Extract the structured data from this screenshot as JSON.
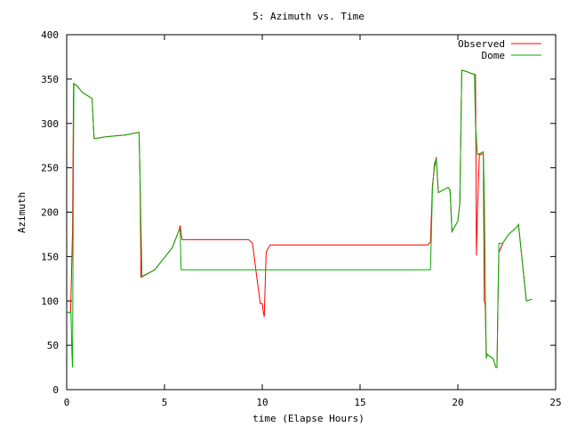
{
  "chart_data": {
    "type": "line",
    "title": "5: Azimuth vs. Time",
    "xlabel": "time (Elapse Hours)",
    "ylabel": "Azimuth",
    "xlim": [
      0,
      25
    ],
    "ylim": [
      0,
      400
    ],
    "xticks": [
      0,
      5,
      10,
      15,
      20,
      25
    ],
    "yticks": [
      0,
      50,
      100,
      150,
      200,
      250,
      300,
      350,
      400
    ],
    "grid": false,
    "legend": "top-right",
    "series": [
      {
        "name": "Observed",
        "color": "#ff0000",
        "x": [
          0,
          0.2,
          0.3,
          0.35,
          0.5,
          0.8,
          1.3,
          1.4,
          1.45,
          2.0,
          3.0,
          3.7,
          3.75,
          3.8,
          4.5,
          5.4,
          5.75,
          5.8,
          5.9,
          7.0,
          8.0,
          9.3,
          9.5,
          9.7,
          9.9,
          10.0,
          10.05,
          10.1,
          10.2,
          10.4,
          12.0,
          15.0,
          18.0,
          18.45,
          18.6,
          18.7,
          18.8,
          18.9,
          19.0,
          19.5,
          19.6,
          19.7,
          20.0,
          20.1,
          20.2,
          20.5,
          20.6,
          20.9,
          20.95,
          21.0,
          21.1,
          21.3,
          21.35,
          21.4,
          21.45,
          21.5,
          21.6,
          21.8,
          21.95,
          22.0,
          22.05,
          22.1,
          22.3,
          22.5,
          22.6,
          23.0,
          23.1,
          23.5,
          23.8
        ],
        "y": [
          87,
          87,
          180,
          345,
          343,
          335,
          328,
          283,
          283,
          285,
          287,
          290,
          240,
          127,
          135,
          160,
          180,
          185,
          169,
          169,
          169,
          169,
          165,
          130,
          97,
          97,
          88,
          82,
          155,
          163,
          163,
          163,
          163,
          163,
          166,
          230,
          250,
          262,
          222,
          228,
          225,
          178,
          190,
          210,
          360,
          358,
          357,
          355,
          151,
          200,
          265,
          266,
          100,
          95,
          40,
          40,
          38,
          35,
          25,
          25,
          100,
          155,
          165,
          172,
          175,
          183,
          186,
          100,
          102
        ]
      },
      {
        "name": "Dome",
        "color": "#00b000",
        "x": [
          0,
          0.22,
          0.27,
          0.3,
          0.33,
          0.37,
          0.5,
          0.8,
          1.3,
          1.4,
          1.45,
          2.0,
          3.0,
          3.7,
          3.75,
          3.85,
          4.5,
          5.4,
          5.75,
          5.8,
          5.85,
          6.0,
          10.0,
          15.0,
          18.5,
          18.6,
          18.7,
          18.8,
          18.9,
          19.0,
          19.5,
          19.6,
          19.7,
          20.0,
          20.1,
          20.2,
          20.5,
          20.6,
          20.85,
          20.9,
          21.0,
          21.1,
          21.3,
          21.35,
          21.45,
          21.5,
          21.6,
          21.8,
          21.95,
          22.0,
          22.05,
          22.1,
          22.3,
          22.5,
          22.6,
          23.0,
          23.1,
          23.5,
          23.8
        ],
        "y": [
          87,
          87,
          40,
          25,
          200,
          345,
          343,
          335,
          328,
          283,
          283,
          285,
          287,
          290,
          240,
          127,
          135,
          160,
          180,
          180,
          135,
          135,
          135,
          135,
          135,
          135,
          225,
          255,
          260,
          222,
          228,
          225,
          178,
          190,
          210,
          360,
          358,
          357,
          355,
          298,
          265,
          266,
          268,
          220,
          35,
          40,
          38,
          35,
          25,
          25,
          100,
          165,
          165,
          172,
          175,
          183,
          186,
          100,
          102
        ]
      }
    ]
  }
}
